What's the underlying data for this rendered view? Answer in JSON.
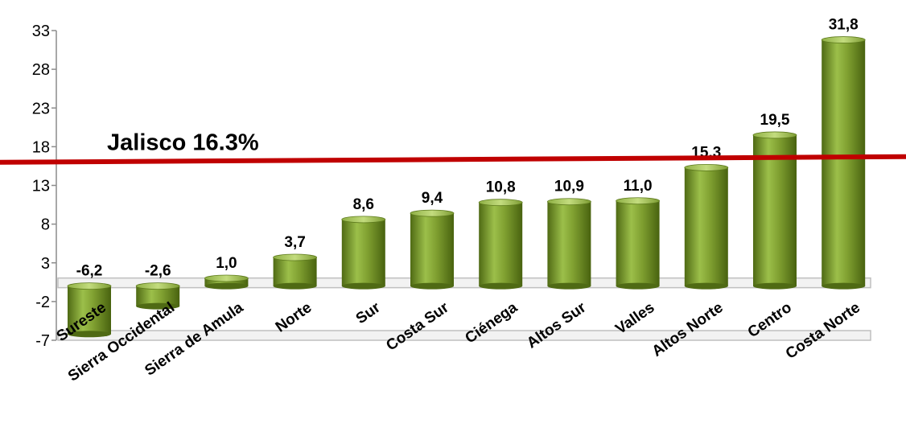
{
  "chart_data": {
    "type": "bar",
    "categories": [
      "Sureste",
      "Sierra Occidental",
      "Sierra de Amula",
      "Norte",
      "Sur",
      "Costa Sur",
      "Ciénega",
      "Altos Sur",
      "Valles",
      "Altos Norte",
      "Centro",
      "Costa Norte"
    ],
    "values": [
      -6.2,
      -2.6,
      1.0,
      3.7,
      8.6,
      9.4,
      10.8,
      10.9,
      11.0,
      15.3,
      19.5,
      31.8
    ],
    "value_labels": [
      "-6,2",
      "-2,6",
      "1,0",
      "3,7",
      "8,6",
      "9,4",
      "10,8",
      "10,9",
      "11,0",
      "15,3",
      "19,5",
      "31,8"
    ],
    "yticks": [
      33,
      28,
      23,
      18,
      13,
      8,
      3,
      -2,
      -7
    ],
    "ylim": [
      -7,
      33
    ],
    "reference_line": {
      "label": "Jalisco 16.3%",
      "value": 16.3,
      "color": "#c00000"
    },
    "bar_color": "#7a9a2e",
    "title": "",
    "xlabel": "",
    "ylabel": "",
    "grid": false,
    "legend": "none"
  }
}
